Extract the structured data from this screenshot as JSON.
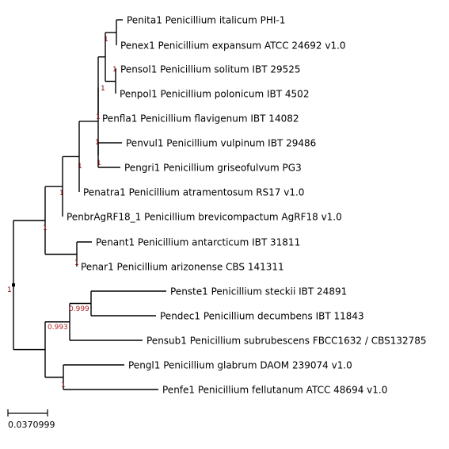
{
  "colors": {
    "branch": "#000000",
    "support_default": "#8b0000",
    "support_low": "#b22222",
    "label": "#000000"
  },
  "taxa": [
    {
      "id": "t1",
      "label": "Penita1 Penicillium italicum PHI-1"
    },
    {
      "id": "t2",
      "label": "Penex1 Penicillium expansum ATCC 24692 v1.0"
    },
    {
      "id": "t3",
      "label": "Pensol1 Penicillium solitum IBT 29525"
    },
    {
      "id": "t4",
      "label": "Penpol1 Penicillium polonicum IBT 4502"
    },
    {
      "id": "t5",
      "label": "Penfla1 Penicillium flavigenum IBT 14082"
    },
    {
      "id": "t6",
      "label": "Penvul1 Penicillium vulpinum IBT 29486"
    },
    {
      "id": "t7",
      "label": "Pengri1 Penicillium griseofulvum PG3"
    },
    {
      "id": "t8",
      "label": "Penatra1 Penicillium atramentosum RS17 v1.0"
    },
    {
      "id": "t9",
      "label": "PenbrAgRF18_1 Penicillium brevicompactum AgRF18 v1.0"
    },
    {
      "id": "t10",
      "label": "Penant1 Penicillium antarcticum IBT 31811"
    },
    {
      "id": "t11",
      "label": "Penar1 Penicillium arizonense CBS 141311"
    },
    {
      "id": "t12",
      "label": "Penste1 Penicillium steckii IBT 24891"
    },
    {
      "id": "t13",
      "label": "Pendec1 Penicillium decumbens IBT 11843"
    },
    {
      "id": "t14",
      "label": "Pensub1 Penicillium subrubescens FBCC1632 / CBS132785"
    },
    {
      "id": "t15",
      "label": "Pengl1 Penicillium glabrum DAOM 239074 v1.0"
    },
    {
      "id": "t16",
      "label": "Penfe1 Penicillium fellutanum ATCC 48694 v1.0"
    }
  ],
  "support_values": {
    "n_root": "1",
    "n_a": "1",
    "n_b": "1",
    "n_c": "1",
    "n_d": "1",
    "n_e": "1",
    "n_f": "1",
    "n_g": "1",
    "n_h": "1",
    "n_i": "1",
    "n_j": "1",
    "n_k": "0.993",
    "n_l": "0.999",
    "n_m": "1"
  },
  "scale_bar": {
    "label": "0.0370999"
  }
}
